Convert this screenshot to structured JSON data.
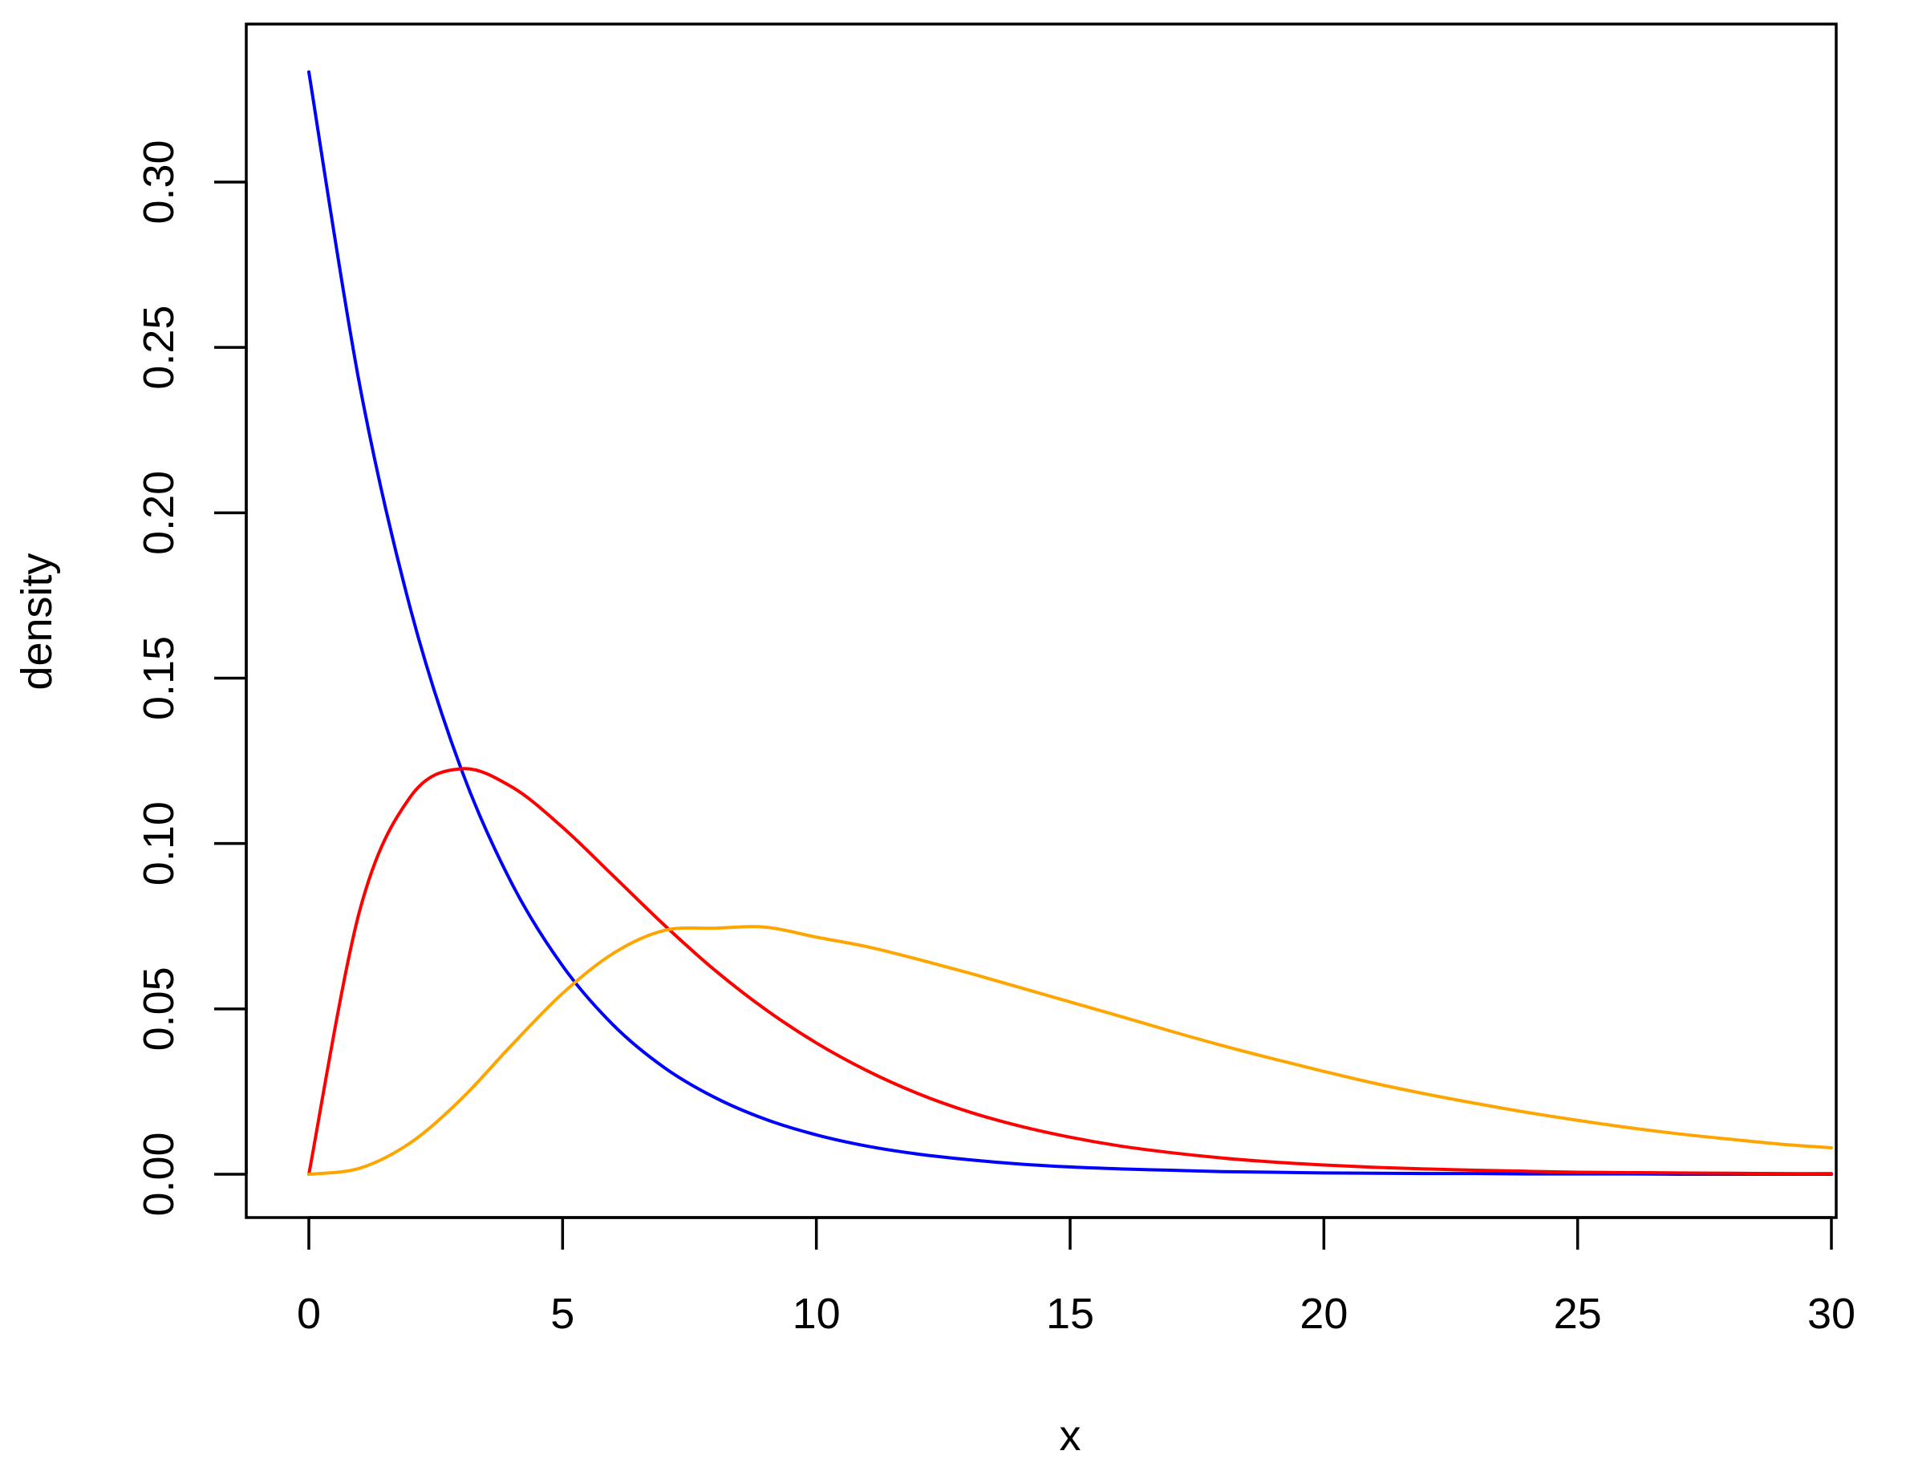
{
  "chart_data": {
    "type": "line",
    "title": "",
    "xlabel": "x",
    "ylabel": "density",
    "xlim": [
      0,
      30
    ],
    "ylim": [
      0,
      0.335
    ],
    "x_ticks": [
      0,
      5,
      10,
      15,
      20,
      25,
      30
    ],
    "x_tick_labels": [
      "0",
      "5",
      "10",
      "15",
      "20",
      "25",
      "30"
    ],
    "y_ticks": [
      0,
      0.05,
      0.1,
      0.15,
      0.2,
      0.25,
      0.3
    ],
    "y_tick_labels": [
      "0.00",
      "0.05",
      "0.10",
      "0.15",
      "0.20",
      "0.25",
      "0.30"
    ],
    "grid": false,
    "legend": "none",
    "x": [
      0,
      1,
      2,
      3,
      4,
      5,
      6,
      7,
      8,
      9,
      10,
      11,
      12,
      13,
      14,
      15,
      16,
      17,
      18,
      19,
      20,
      21,
      22,
      23,
      24,
      25,
      26,
      27,
      28,
      29,
      30
    ],
    "series": [
      {
        "color": "#0000ff",
        "values": [
          0.3333,
          0.2388,
          0.1711,
          0.1226,
          0.0879,
          0.063,
          0.0451,
          0.0323,
          0.0232,
          0.0166,
          0.0119,
          0.0085,
          0.0061,
          0.0044,
          0.0031,
          0.0022,
          0.0016,
          0.0012,
          0.0008,
          0.0006,
          0.0004,
          0.0003,
          0.0002,
          0.0002,
          0.0001,
          0.0001,
          0.0001,
          0.0,
          0.0,
          0.0,
          0.0
        ]
      },
      {
        "color": "#ff0000",
        "values": [
          0.0,
          0.0796,
          0.1141,
          0.1226,
          0.1171,
          0.1049,
          0.0902,
          0.0754,
          0.0617,
          0.0498,
          0.0397,
          0.0313,
          0.0244,
          0.0189,
          0.0146,
          0.0112,
          0.0085,
          0.0065,
          0.0049,
          0.0037,
          0.0028,
          0.0021,
          0.0016,
          0.0012,
          0.0009,
          0.0006,
          0.0005,
          0.0004,
          0.0003,
          0.0002,
          0.0002
        ]
      },
      {
        "color": "#ffa500",
        "values": [
          0.0,
          0.0018,
          0.0095,
          0.0227,
          0.0391,
          0.0547,
          0.0668,
          0.0737,
          0.0744,
          0.0747,
          0.0717,
          0.0688,
          0.065,
          0.0609,
          0.0565,
          0.0521,
          0.0477,
          0.0432,
          0.0389,
          0.0349,
          0.0311,
          0.0275,
          0.0243,
          0.0214,
          0.0187,
          0.0163,
          0.0141,
          0.0122,
          0.0106,
          0.0091,
          0.008
        ]
      }
    ]
  }
}
